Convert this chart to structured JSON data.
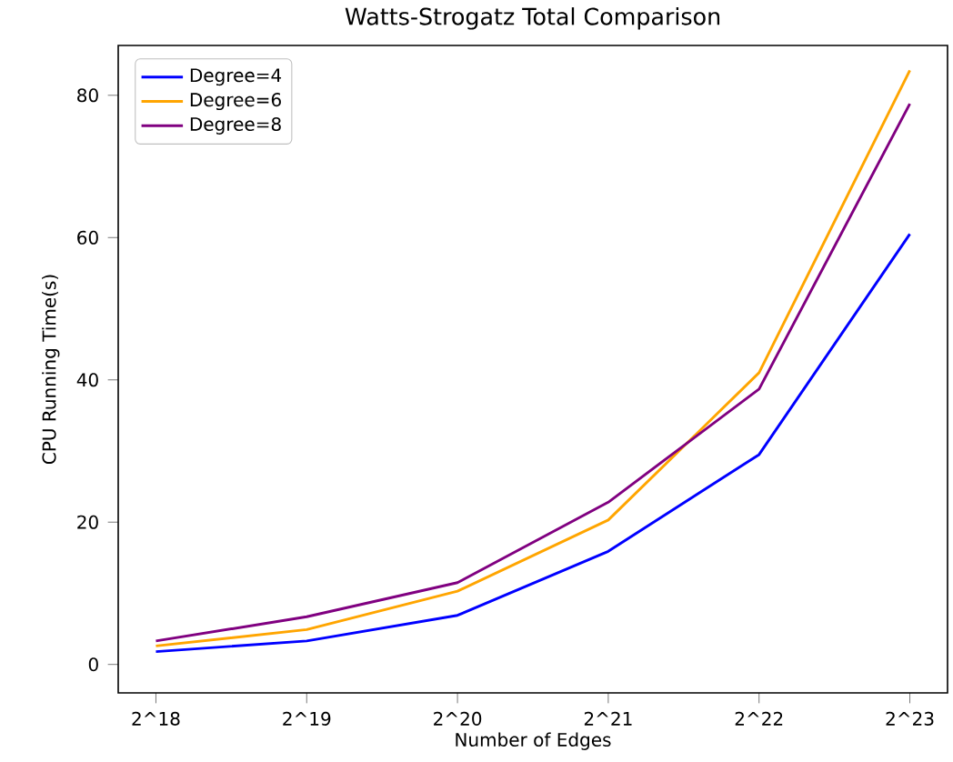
{
  "chart_data": {
    "type": "line",
    "title": "Watts-Strogatz Total Comparison",
    "xlabel": "Number of Edges",
    "ylabel": "CPU Running Time(s)",
    "categories": [
      "2^18",
      "2^19",
      "2^20",
      "2^21",
      "2^22",
      "2^23"
    ],
    "series": [
      {
        "name": "Degree=4",
        "color": "#0000ff",
        "values": [
          1.8,
          3.3,
          6.9,
          15.9,
          29.5,
          60.5
        ]
      },
      {
        "name": "Degree=6",
        "color": "#ffa500",
        "values": [
          2.6,
          4.9,
          10.3,
          20.3,
          41,
          83.5
        ]
      },
      {
        "name": "Degree=8",
        "color": "#800080",
        "values": [
          3.3,
          6.7,
          11.5,
          22.8,
          38.7,
          78.8
        ]
      }
    ],
    "ylim": [
      -4,
      87
    ],
    "yticks": [
      0,
      20,
      40,
      60,
      80
    ],
    "legend": "top left",
    "grid": false,
    "marker": "none",
    "line_style": "solid"
  }
}
